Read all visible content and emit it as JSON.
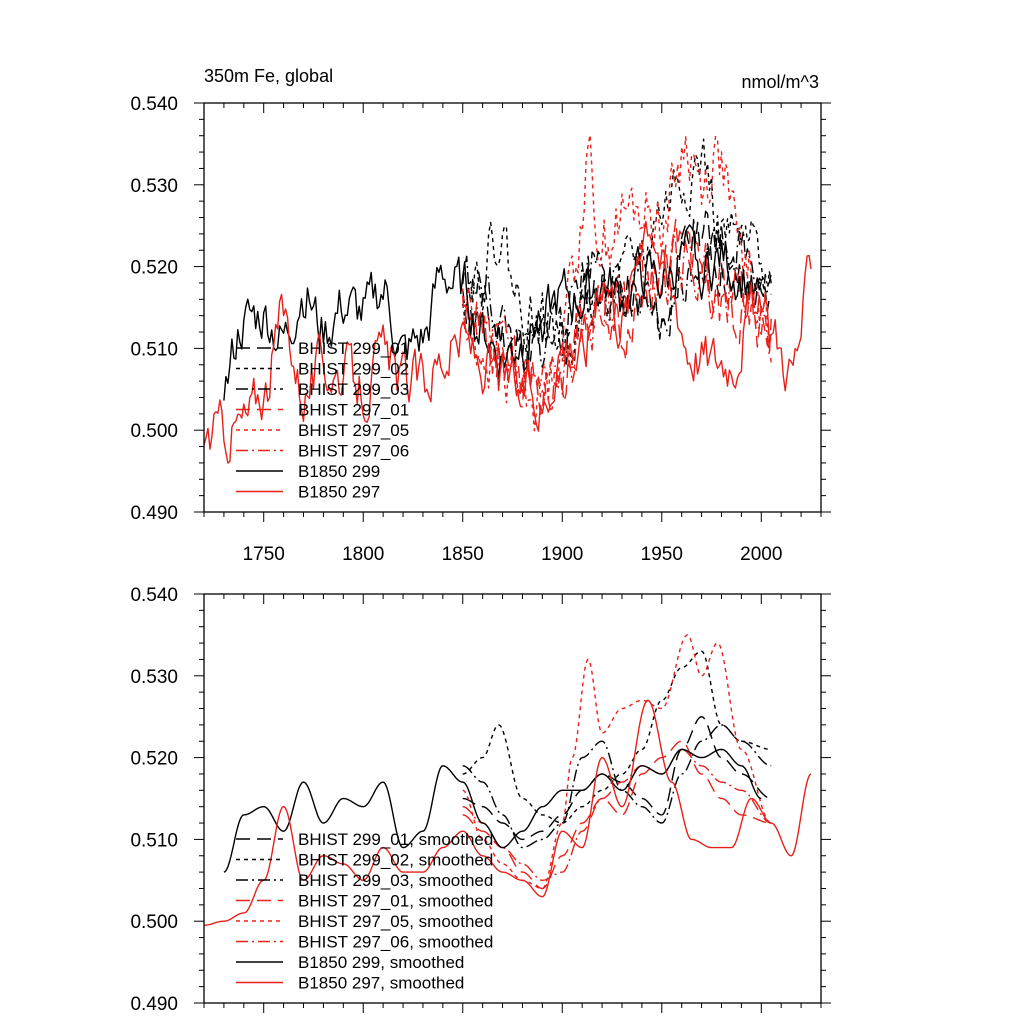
{
  "chart_data": [
    {
      "type": "line",
      "title": "350m Fe, global",
      "units": "nmol/m^3",
      "xlim": [
        1720,
        2030
      ],
      "ylim": [
        0.49,
        0.54
      ],
      "xticks": [
        1750,
        1800,
        1850,
        1900,
        1950,
        2000
      ],
      "xtick_labels": [
        "1750",
        "1800",
        "1850",
        "1900",
        "1950",
        "2000"
      ],
      "yticks": [
        "0.490",
        "0.500",
        "0.510",
        "0.520",
        "0.530",
        "0.540"
      ],
      "legend_position": "bottom-left",
      "series": [
        {
          "name": "BHIST 299_01",
          "color": "#000000",
          "dash": "14,7",
          "seed": 11,
          "noise": 0.0035,
          "x": [
            1850,
            1860,
            1870,
            1880,
            1890,
            1900,
            1910,
            1920,
            1930,
            1940,
            1950,
            1960,
            1970,
            1980,
            1990,
            2005
          ],
          "y": [
            0.515,
            0.514,
            0.512,
            0.51,
            0.511,
            0.513,
            0.516,
            0.518,
            0.517,
            0.515,
            0.513,
            0.521,
            0.525,
            0.52,
            0.518,
            0.515
          ]
        },
        {
          "name": "BHIST 299_02",
          "color": "#000000",
          "dash": "4,4",
          "seed": 22,
          "noise": 0.004,
          "x": [
            1850,
            1860,
            1868,
            1880,
            1890,
            1900,
            1910,
            1920,
            1930,
            1940,
            1950,
            1960,
            1970,
            1980,
            1990,
            2005
          ],
          "y": [
            0.518,
            0.52,
            0.524,
            0.515,
            0.513,
            0.512,
            0.514,
            0.516,
            0.518,
            0.521,
            0.527,
            0.531,
            0.533,
            0.524,
            0.522,
            0.521
          ]
        },
        {
          "name": "BHIST 299_03",
          "color": "#000000",
          "dash": "12,4,2,4",
          "seed": 33,
          "noise": 0.0035,
          "x": [
            1850,
            1860,
            1870,
            1880,
            1890,
            1900,
            1910,
            1920,
            1930,
            1940,
            1950,
            1960,
            1970,
            1980,
            1990,
            2005
          ],
          "y": [
            0.519,
            0.517,
            0.513,
            0.509,
            0.51,
            0.512,
            0.52,
            0.522,
            0.516,
            0.514,
            0.512,
            0.518,
            0.522,
            0.524,
            0.522,
            0.519
          ]
        },
        {
          "name": "BHIST 297_01",
          "color": "#e8201a",
          "dash": "14,7",
          "seed": 44,
          "noise": 0.004,
          "x": [
            1850,
            1860,
            1870,
            1880,
            1890,
            1900,
            1910,
            1920,
            1930,
            1940,
            1950,
            1960,
            1970,
            1980,
            1990,
            2005
          ],
          "y": [
            0.513,
            0.511,
            0.509,
            0.506,
            0.504,
            0.508,
            0.512,
            0.515,
            0.513,
            0.518,
            0.52,
            0.522,
            0.518,
            0.515,
            0.513,
            0.512
          ]
        },
        {
          "name": "BHIST 297_05",
          "color": "#e8201a",
          "dash": "4,4",
          "seed": 55,
          "noise": 0.0045,
          "x": [
            1850,
            1860,
            1870,
            1880,
            1890,
            1900,
            1905,
            1913,
            1920,
            1930,
            1940,
            1950,
            1963,
            1970,
            1978,
            1990,
            2005
          ],
          "y": [
            0.516,
            0.51,
            0.507,
            0.505,
            0.504,
            0.512,
            0.52,
            0.532,
            0.523,
            0.526,
            0.527,
            0.526,
            0.535,
            0.53,
            0.534,
            0.521,
            0.512
          ]
        },
        {
          "name": "BHIST 297_06",
          "color": "#e8201a",
          "dash": "12,4,2,4",
          "seed": 66,
          "noise": 0.004,
          "x": [
            1850,
            1860,
            1870,
            1880,
            1890,
            1900,
            1910,
            1920,
            1930,
            1940,
            1950,
            1960,
            1970,
            1980,
            1990,
            2005
          ],
          "y": [
            0.514,
            0.512,
            0.509,
            0.507,
            0.505,
            0.506,
            0.511,
            0.515,
            0.517,
            0.519,
            0.518,
            0.521,
            0.519,
            0.517,
            0.516,
            0.512
          ]
        },
        {
          "name": "B1850 299",
          "color": "#000000",
          "dash": "",
          "seed": 77,
          "noise": 0.0035,
          "x": [
            1730,
            1740,
            1750,
            1760,
            1770,
            1780,
            1790,
            1800,
            1810,
            1820,
            1830,
            1840,
            1850,
            1860,
            1870,
            1880,
            1890,
            1900,
            1910,
            1920,
            1930,
            1940,
            1950,
            1960,
            1970,
            1980,
            1990,
            2000
          ],
          "y": [
            0.506,
            0.513,
            0.514,
            0.511,
            0.517,
            0.512,
            0.515,
            0.514,
            0.517,
            0.509,
            0.511,
            0.519,
            0.517,
            0.512,
            0.509,
            0.511,
            0.514,
            0.516,
            0.516,
            0.518,
            0.516,
            0.519,
            0.518,
            0.521,
            0.52,
            0.521,
            0.519,
            0.515
          ]
        },
        {
          "name": "B1850 297",
          "color": "#e8201a",
          "dash": "",
          "seed": 88,
          "noise": 0.0035,
          "x": [
            1720,
            1730,
            1740,
            1750,
            1760,
            1770,
            1780,
            1790,
            1800,
            1810,
            1820,
            1830,
            1840,
            1850,
            1860,
            1870,
            1880,
            1890,
            1900,
            1910,
            1920,
            1930,
            1943,
            1955,
            1965,
            1975,
            1985,
            1995,
            2005,
            2015,
            2025
          ],
          "y": [
            0.4995,
            0.5,
            0.501,
            0.505,
            0.514,
            0.505,
            0.508,
            0.507,
            0.505,
            0.509,
            0.506,
            0.506,
            0.509,
            0.511,
            0.508,
            0.506,
            0.505,
            0.503,
            0.511,
            0.509,
            0.52,
            0.514,
            0.527,
            0.517,
            0.51,
            0.509,
            0.509,
            0.515,
            0.512,
            0.508,
            0.518
          ]
        }
      ]
    },
    {
      "type": "line",
      "title": "",
      "units": "",
      "xlim": [
        1720,
        2030
      ],
      "ylim": [
        0.49,
        0.54
      ],
      "xticks": [
        1750,
        1800,
        1850,
        1900,
        1950,
        2000
      ],
      "xtick_labels": [],
      "yticks": [
        "0.490",
        "0.500",
        "0.510",
        "0.520",
        "0.530",
        "0.540"
      ],
      "legend_position": "bottom-left",
      "series": [
        {
          "name": "BHIST 299_01, smoothed",
          "color": "#000000",
          "dash": "14,7",
          "x": [
            1850,
            1860,
            1870,
            1880,
            1890,
            1900,
            1910,
            1920,
            1930,
            1940,
            1950,
            1960,
            1970,
            1980,
            1990,
            2005
          ],
          "y": [
            0.515,
            0.514,
            0.512,
            0.51,
            0.511,
            0.513,
            0.516,
            0.518,
            0.517,
            0.515,
            0.513,
            0.521,
            0.525,
            0.52,
            0.518,
            0.515
          ]
        },
        {
          "name": "BHIST 299_02, smoothed",
          "color": "#000000",
          "dash": "4,4",
          "x": [
            1850,
            1860,
            1868,
            1880,
            1890,
            1900,
            1910,
            1920,
            1930,
            1940,
            1950,
            1960,
            1970,
            1980,
            1990,
            2005
          ],
          "y": [
            0.518,
            0.52,
            0.524,
            0.515,
            0.513,
            0.512,
            0.514,
            0.516,
            0.518,
            0.521,
            0.527,
            0.531,
            0.533,
            0.524,
            0.522,
            0.521
          ]
        },
        {
          "name": "BHIST 299_03, smoothed",
          "color": "#000000",
          "dash": "12,4,2,4",
          "x": [
            1850,
            1860,
            1870,
            1880,
            1890,
            1900,
            1910,
            1920,
            1930,
            1940,
            1950,
            1960,
            1970,
            1980,
            1990,
            2005
          ],
          "y": [
            0.519,
            0.517,
            0.513,
            0.509,
            0.51,
            0.512,
            0.52,
            0.522,
            0.516,
            0.514,
            0.512,
            0.518,
            0.522,
            0.524,
            0.522,
            0.519
          ]
        },
        {
          "name": "BHIST 297_01, smoothed",
          "color": "#e8201a",
          "dash": "14,7",
          "x": [
            1850,
            1860,
            1870,
            1880,
            1890,
            1900,
            1910,
            1920,
            1930,
            1940,
            1950,
            1960,
            1970,
            1980,
            1990,
            2005
          ],
          "y": [
            0.513,
            0.511,
            0.509,
            0.506,
            0.504,
            0.508,
            0.512,
            0.515,
            0.513,
            0.518,
            0.52,
            0.522,
            0.518,
            0.515,
            0.513,
            0.512
          ]
        },
        {
          "name": "BHIST 297_05, smoothed",
          "color": "#e8201a",
          "dash": "4,4",
          "x": [
            1850,
            1860,
            1870,
            1880,
            1890,
            1900,
            1905,
            1913,
            1920,
            1930,
            1940,
            1950,
            1963,
            1970,
            1978,
            1990,
            2005
          ],
          "y": [
            0.516,
            0.51,
            0.507,
            0.505,
            0.504,
            0.512,
            0.52,
            0.532,
            0.523,
            0.526,
            0.527,
            0.526,
            0.535,
            0.53,
            0.534,
            0.521,
            0.512
          ]
        },
        {
          "name": "BHIST 297_06, smoothed",
          "color": "#e8201a",
          "dash": "12,4,2,4",
          "x": [
            1850,
            1860,
            1870,
            1880,
            1890,
            1900,
            1910,
            1920,
            1930,
            1940,
            1950,
            1960,
            1970,
            1980,
            1990,
            2005
          ],
          "y": [
            0.514,
            0.512,
            0.509,
            0.507,
            0.505,
            0.506,
            0.511,
            0.515,
            0.517,
            0.519,
            0.518,
            0.521,
            0.519,
            0.517,
            0.516,
            0.512
          ]
        },
        {
          "name": "B1850 299, smoothed",
          "color": "#000000",
          "dash": "",
          "x": [
            1730,
            1740,
            1750,
            1760,
            1770,
            1780,
            1790,
            1800,
            1810,
            1820,
            1830,
            1840,
            1850,
            1860,
            1870,
            1880,
            1890,
            1900,
            1910,
            1920,
            1930,
            1940,
            1950,
            1960,
            1970,
            1980,
            1990,
            2000
          ],
          "y": [
            0.506,
            0.513,
            0.514,
            0.511,
            0.517,
            0.512,
            0.515,
            0.514,
            0.517,
            0.509,
            0.511,
            0.519,
            0.517,
            0.512,
            0.509,
            0.511,
            0.514,
            0.516,
            0.516,
            0.518,
            0.516,
            0.519,
            0.518,
            0.521,
            0.52,
            0.521,
            0.519,
            0.515
          ]
        },
        {
          "name": "B1850 297, smoothed",
          "color": "#e8201a",
          "dash": "",
          "x": [
            1720,
            1730,
            1740,
            1750,
            1760,
            1770,
            1780,
            1790,
            1800,
            1810,
            1820,
            1830,
            1840,
            1850,
            1860,
            1870,
            1880,
            1890,
            1900,
            1910,
            1920,
            1930,
            1943,
            1955,
            1965,
            1975,
            1985,
            1995,
            2005,
            2015,
            2025
          ],
          "y": [
            0.4995,
            0.5,
            0.501,
            0.505,
            0.514,
            0.505,
            0.508,
            0.507,
            0.505,
            0.509,
            0.506,
            0.506,
            0.509,
            0.511,
            0.508,
            0.506,
            0.505,
            0.503,
            0.511,
            0.509,
            0.52,
            0.514,
            0.527,
            0.517,
            0.51,
            0.509,
            0.509,
            0.515,
            0.512,
            0.508,
            0.518
          ]
        }
      ]
    }
  ]
}
